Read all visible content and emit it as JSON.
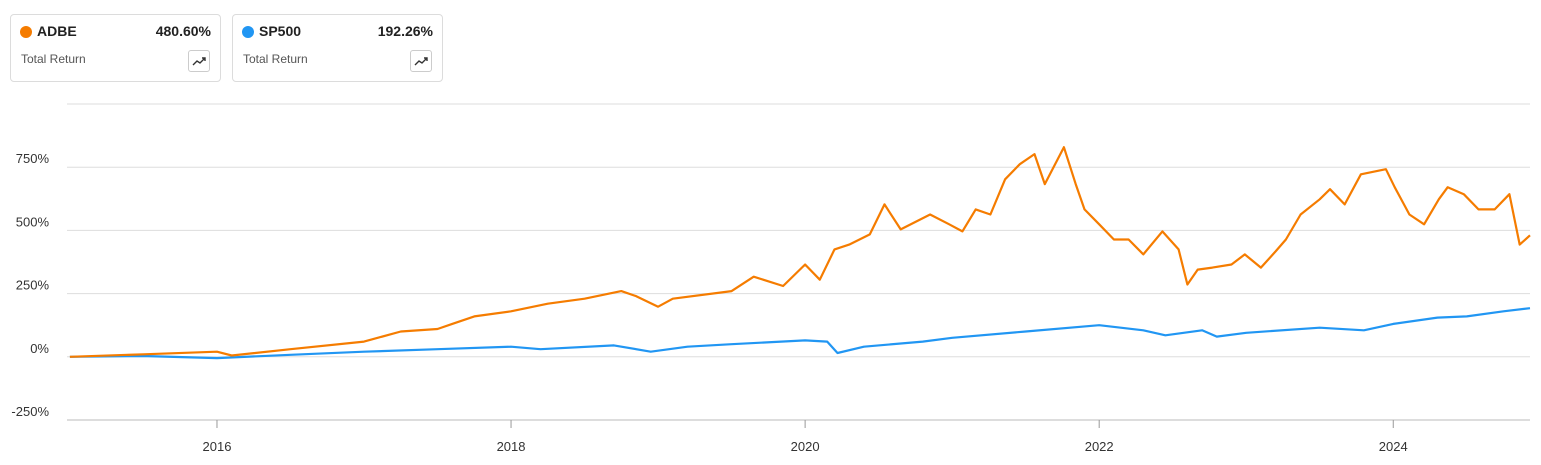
{
  "chart_data": {
    "type": "line",
    "xlim": [
      2014.98,
      2024.93
    ],
    "xticks": [
      2016,
      2018,
      2020,
      2022,
      2024
    ],
    "ylim": [
      -250,
      1000
    ],
    "yticks": [
      {
        "value": -250,
        "label": "-250%"
      },
      {
        "value": 0,
        "label": "0%"
      },
      {
        "value": 250,
        "label": "250%"
      },
      {
        "value": 500,
        "label": "500%"
      },
      {
        "value": 750,
        "label": "750%"
      }
    ],
    "grid": true,
    "series": [
      {
        "name": "ADBE",
        "color": "#f57c00",
        "metric": "Total Return",
        "return": {
          "value": 480.6,
          "label": "480.60%"
        },
        "x": [
          2015.0,
          2015.5,
          2016.0,
          2016.1,
          2016.5,
          2017.0,
          2017.25,
          2017.5,
          2017.6,
          2017.75,
          2018.0,
          2018.25,
          2018.5,
          2018.75,
          2018.85,
          2019.0,
          2019.1,
          2019.5,
          2019.65,
          2019.85,
          2020.0,
          2020.1,
          2020.2,
          2020.3,
          2020.44,
          2020.54,
          2020.65,
          2020.85,
          2020.98,
          2021.07,
          2021.16,
          2021.26,
          2021.36,
          2021.46,
          2021.56,
          2021.63,
          2021.76,
          2021.84,
          2021.9,
          2022.0,
          2022.1,
          2022.2,
          2022.3,
          2022.43,
          2022.54,
          2022.6,
          2022.67,
          2022.77,
          2022.9,
          2022.99,
          2023.1,
          2023.2,
          2023.27,
          2023.37,
          2023.5,
          2023.57,
          2023.67,
          2023.78,
          2023.95,
          2024.01,
          2024.11,
          2024.21,
          2024.31,
          2024.37,
          2024.48,
          2024.58,
          2024.69,
          2024.79,
          2024.86,
          2024.93
        ],
        "values": [
          0,
          10,
          20,
          5,
          30,
          60,
          100,
          110,
          130,
          160,
          180,
          210,
          230,
          260,
          240,
          198,
          230,
          260,
          317,
          280,
          365,
          305,
          425,
          444,
          484,
          603,
          504,
          563,
          524,
          496,
          583,
          563,
          702,
          762,
          802,
          683,
          829,
          683,
          583,
          524,
          464,
          464,
          405,
          496,
          425,
          286,
          345,
          353,
          365,
          405,
          353,
          417,
          464,
          563,
          623,
          663,
          603,
          722,
          742,
          671,
          563,
          524,
          623,
          671,
          643,
          583,
          583,
          643,
          444,
          480.6
        ]
      },
      {
        "name": "SP500",
        "color": "#2196f3",
        "metric": "Total Return",
        "return": {
          "value": 192.26,
          "label": "192.26%"
        },
        "x": [
          2015.0,
          2015.5,
          2016.0,
          2016.5,
          2017.0,
          2017.5,
          2018.0,
          2018.2,
          2018.7,
          2018.95,
          2019.2,
          2019.5,
          2020.0,
          2020.15,
          2020.22,
          2020.4,
          2020.8,
          2021.0,
          2021.5,
          2022.0,
          2022.3,
          2022.45,
          2022.7,
          2022.8,
          2023.0,
          2023.5,
          2023.8,
          2024.0,
          2024.3,
          2024.5,
          2024.75,
          2024.93
        ],
        "values": [
          0,
          3,
          -5,
          8,
          20,
          30,
          40,
          30,
          45,
          20,
          40,
          50,
          65,
          60,
          15,
          40,
          60,
          75,
          100,
          125,
          105,
          85,
          105,
          80,
          95,
          115,
          105,
          130,
          155,
          160,
          180,
          192.26
        ]
      }
    ]
  }
}
